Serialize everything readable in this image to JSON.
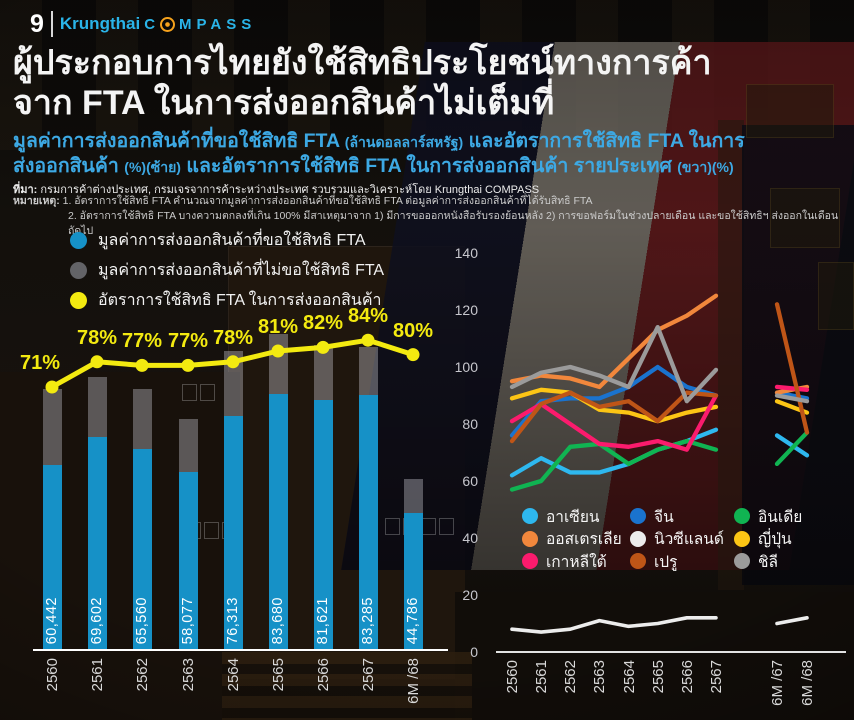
{
  "page": {
    "number": "9"
  },
  "brand": {
    "name": "Krungthai",
    "compass_pre": "C",
    "compass_post": "MPASS"
  },
  "title": {
    "line1": "ผู้ประกอบการไทยยังใช้สิทธิประโยชน์ทางการค้า",
    "line2": "จาก FTA ในการส่งออกสินค้าไม่เต็มที่"
  },
  "subtitle": {
    "lines": [
      [
        {
          "t": "มูลค่าการส่งออกสินค้าที่ขอใช้สิทธิ FTA ",
          "s": 0
        },
        {
          "t": "(ล้านดอลลาร์สหรัฐ)",
          "s": 1
        },
        {
          "t": " และอัตราการใช้สิทธิ FTA ในการ",
          "s": 0
        }
      ],
      [
        {
          "t": "ส่งออกสินค้า ",
          "s": 0
        },
        {
          "t": "(%)(ซ้าย)",
          "s": 1
        },
        {
          "t": " และอัตราการใช้สิทธิ FTA ในการส่งออกสินค้า รายประเทศ ",
          "s": 0
        },
        {
          "t": "(ขวา)(%)",
          "s": 1
        }
      ]
    ]
  },
  "source": {
    "label": "ที่มา:",
    "text": " กรมการค้าต่างประเทศ, กรมเจรจาการค้าระหว่างประเทศ รวบรวมและวิเคราะห์โดย Krungthai COMPASS"
  },
  "notes": {
    "label": "หมายเหตุ:",
    "lines": [
      "1. อัตราการใช้สิทธิ FTA คำนวณจากมูลค่าการส่งออกสินค้าที่ขอใช้สิทธิ FTA ต่อมูลค่าการส่งออกสินค้าที่ได้รับสิทธิ FTA",
      "2. อัตราการใช้สิทธิ FTA บางความตกลงที่เกิน 100% มีสาเหตุมาจาก 1) มีการขอออกหนังสือรับรองย้อนหลัง 2) การขอฟอร์มในช่วงปลายเดือน และขอใช้สิทธิฯ ส่งออกในเดือนถัดไป"
    ]
  },
  "colors": {
    "accent_blue_text": "#3da9e4",
    "bar_blue": "#1691c7",
    "bar_gray": "rgba(185,185,192,0.42)",
    "pct_yellow": "#f3ea10",
    "axis_white": "#ffffff"
  },
  "chart_data": [
    {
      "type": "bar",
      "title": "มูลค่าการส่งออกสินค้าที่ขอใช้สิทธิ FTA (ล้านดอลลาร์สหรัฐ) และอัตราการใช้สิทธิ FTA (%)",
      "categories": [
        "2560",
        "2561",
        "2562",
        "2563",
        "2564",
        "2565",
        "2566",
        "2567",
        "6M /68"
      ],
      "values": [
        60442,
        69602,
        65560,
        58077,
        76313,
        83680,
        81621,
        83285,
        44786
      ],
      "value_labels": [
        "60,442",
        "69,602",
        "65,560",
        "58,077",
        "76,313",
        "83,680",
        "81,621",
        "83,285",
        "44,786"
      ],
      "line_pct": [
        71,
        78,
        77,
        77,
        78,
        81,
        82,
        84,
        80
      ],
      "pct_labels": [
        "71%",
        "78%",
        "77%",
        "77%",
        "78%",
        "81%",
        "82%",
        "84%",
        "80%"
      ],
      "legend": [
        {
          "id": "used-fta-value",
          "label": "มูลค่าการส่งออกสินค้าที่ขอใช้สิทธิ FTA",
          "color": "#1691c7"
        },
        {
          "id": "unused-fta-value",
          "label": "มูลค่าการส่งออกสินค้าที่ไม่ขอใช้สิทธิ FTA",
          "color": "#636367"
        },
        {
          "id": "fta-utilization-rate",
          "label": "อัตราการใช้สิทธิ FTA ในการส่งออกสินค้า",
          "color": "#f3ea10"
        }
      ],
      "ylabel": "",
      "xlabel": "",
      "grid": false
    },
    {
      "type": "line",
      "title": "อัตราการใช้สิทธิ FTA ในการส่งออกสินค้า รายประเทศ (%)",
      "categories": [
        "2560",
        "2561",
        "2562",
        "2563",
        "2564",
        "2565",
        "2566",
        "2567",
        "6M /67",
        "6M /68"
      ],
      "gap_after_index": 7,
      "ylim": [
        0,
        140
      ],
      "yticks": [
        0,
        20,
        40,
        60,
        80,
        100,
        120,
        140
      ],
      "grid": false,
      "legend_position": "bottom",
      "series": [
        {
          "id": "asean",
          "name": "อาเซียน",
          "color": "#2eb8ef",
          "values": [
            62,
            68,
            63,
            63,
            66,
            71,
            74,
            78,
            76,
            69
          ]
        },
        {
          "id": "china",
          "name": "จีน",
          "color": "#1a73ce",
          "values": [
            76,
            88,
            89,
            89,
            93,
            100,
            93,
            90,
            91,
            89
          ]
        },
        {
          "id": "india",
          "name": "อินเดีย",
          "color": "#10b452",
          "values": [
            57,
            60,
            72,
            73,
            66,
            71,
            74,
            71,
            66,
            77
          ]
        },
        {
          "id": "australia",
          "name": "ออสเตรเลีย",
          "color": "#f1873c",
          "values": [
            95,
            97,
            96,
            93,
            103,
            113,
            118,
            125,
            91,
            93
          ]
        },
        {
          "id": "new-zealand",
          "name": "นิวซีแลนด์",
          "color": "#ececec",
          "values": [
            8,
            7,
            8,
            11,
            9,
            10,
            12,
            12,
            10,
            12
          ]
        },
        {
          "id": "japan",
          "name": "ญี่ปุ่น",
          "color": "#fcc515",
          "values": [
            89,
            92,
            91,
            85,
            84,
            81,
            84,
            86,
            88,
            84
          ]
        },
        {
          "id": "south-korea",
          "name": "เกาหลีใต้",
          "color": "#fb1b6d",
          "values": [
            81,
            87,
            80,
            73,
            72,
            74,
            71,
            90,
            93,
            92
          ]
        },
        {
          "id": "peru",
          "name": "เปรู",
          "color": "#bf5517",
          "values": [
            74,
            87,
            91,
            86,
            88,
            81,
            91,
            90,
            122,
            77
          ]
        },
        {
          "id": "chile",
          "name": "ชิลี",
          "color": "#9b9b9b",
          "values": [
            93,
            98,
            100,
            97,
            93,
            114,
            88,
            99,
            90,
            88
          ]
        }
      ]
    }
  ]
}
